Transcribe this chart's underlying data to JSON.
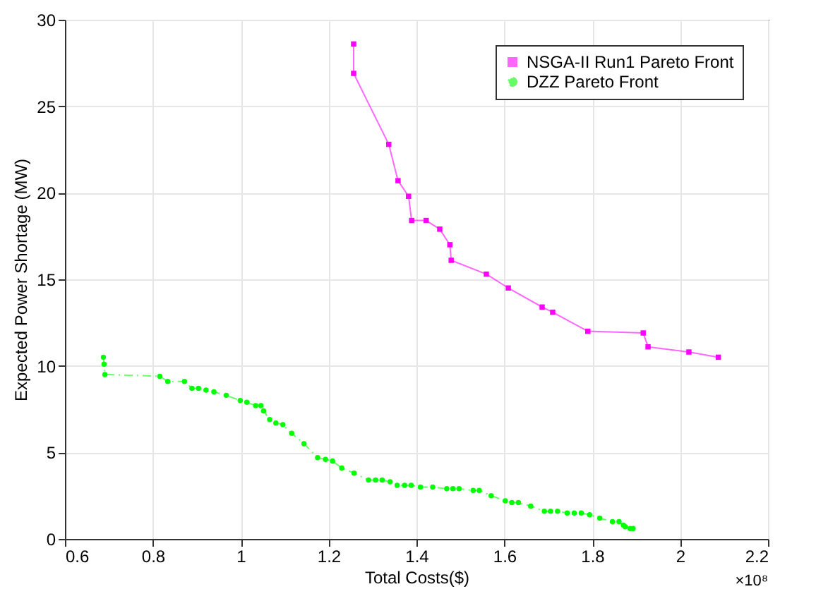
{
  "chart_data": {
    "type": "line",
    "xlabel": "Total Costs($)",
    "ylabel": "Expected Power Shortage (MW)",
    "annotations": [
      "×10⁸"
    ],
    "xlim": [
      0.6,
      2.2
    ],
    "xticks": [
      0.6,
      0.8,
      1,
      1.2,
      1.4,
      1.6,
      1.8,
      2,
      2.2
    ],
    "ylim": [
      0,
      30
    ],
    "yticks": [
      0,
      5,
      10,
      15,
      20,
      25,
      30
    ],
    "grid": true,
    "legend": "top right",
    "series": [
      {
        "name": "NSGA-II Run1 Pareto Front",
        "color": "#ff00ff",
        "marker": "square",
        "line_style": "solid",
        "x": [
          1.257,
          1.257,
          1.337,
          1.358,
          1.382,
          1.389,
          1.422,
          1.453,
          1.476,
          1.479,
          1.559,
          1.609,
          1.686,
          1.71,
          1.79,
          1.916,
          1.927,
          2.02,
          2.087
        ],
        "values": [
          28.6,
          26.9,
          22.8,
          20.7,
          19.8,
          18.4,
          18.4,
          17.9,
          17.0,
          16.1,
          15.3,
          14.5,
          13.4,
          13.1,
          12.0,
          11.9,
          11.1,
          10.8,
          10.5
        ]
      },
      {
        "name": "DZZ Pareto Front",
        "color": "#00ff00",
        "marker": "circle",
        "line_style": "dashed",
        "x": [
          0.6875,
          0.689,
          0.691,
          0.816,
          0.834,
          0.872,
          0.889,
          0.904,
          0.921,
          0.939,
          0.967,
          0.999,
          1.014,
          1.034,
          1.046,
          1.052,
          1.066,
          1.08,
          1.096,
          1.116,
          1.144,
          1.175,
          1.193,
          1.209,
          1.23,
          1.258,
          1.291,
          1.307,
          1.322,
          1.34,
          1.356,
          1.373,
          1.388,
          1.409,
          1.437,
          1.469,
          1.483,
          1.497,
          1.529,
          1.543,
          1.57,
          1.602,
          1.617,
          1.632,
          1.66,
          1.691,
          1.705,
          1.721,
          1.743,
          1.759,
          1.775,
          1.794,
          1.817,
          1.846,
          1.861,
          1.871,
          1.875,
          1.886,
          1.893
        ],
        "values": [
          10.5,
          10.1,
          9.5,
          9.4,
          9.1,
          9.1,
          8.7,
          8.7,
          8.6,
          8.5,
          8.3,
          8.0,
          7.9,
          7.7,
          7.7,
          7.4,
          6.9,
          6.7,
          6.6,
          6.1,
          5.5,
          4.7,
          4.6,
          4.5,
          4.1,
          3.8,
          3.4,
          3.4,
          3.4,
          3.3,
          3.1,
          3.1,
          3.1,
          3.0,
          3.0,
          2.9,
          2.9,
          2.9,
          2.8,
          2.8,
          2.5,
          2.2,
          2.1,
          2.1,
          1.9,
          1.6,
          1.6,
          1.6,
          1.5,
          1.5,
          1.5,
          1.4,
          1.2,
          1.0,
          1.0,
          0.8,
          0.7,
          0.6,
          0.6
        ]
      }
    ]
  }
}
